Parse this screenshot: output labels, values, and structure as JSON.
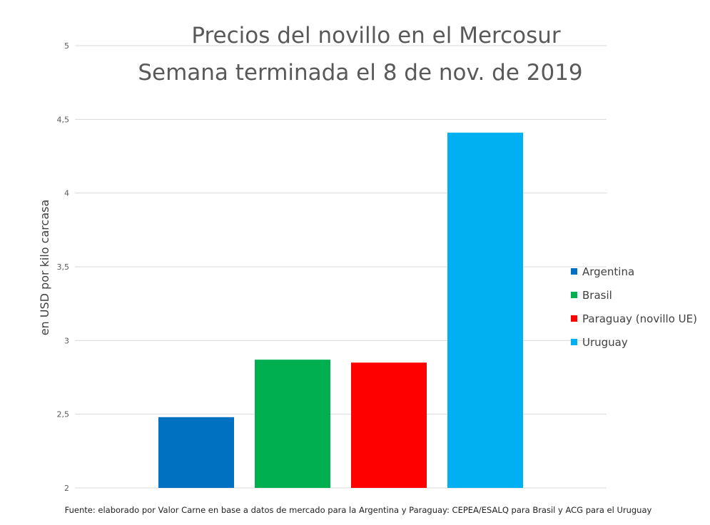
{
  "chart_data": {
    "type": "bar",
    "title": "Precios del novillo en el Mercosur",
    "subtitle": "Semana terminada el 8 de nov. de 2019",
    "ylabel": "en USD por kilo carcasa",
    "xlabel": "",
    "ylim": [
      2,
      5
    ],
    "yticks": [
      {
        "value": 2,
        "label": "2"
      },
      {
        "value": 2.5,
        "label": "2,5"
      },
      {
        "value": 3,
        "label": "3"
      },
      {
        "value": 3.5,
        "label": "3,5"
      },
      {
        "value": 4,
        "label": "4"
      },
      {
        "value": 4.5,
        "label": "4,5"
      },
      {
        "value": 5,
        "label": "5"
      }
    ],
    "grid": true,
    "legend_position": "right",
    "series": [
      {
        "name": "Argentina",
        "value": 2.48,
        "color": "#0070c0"
      },
      {
        "name": "Brasil",
        "value": 2.87,
        "color": "#00b050"
      },
      {
        "name": "Paraguay (novillo UE)",
        "value": 2.85,
        "color": "#ff0000"
      },
      {
        "name": "Uruguay",
        "value": 4.41,
        "color": "#00b0f0"
      }
    ],
    "source": "Fuente: elaborado por Valor Carne en base a datos de mercado para la Argentina y Paraguay: CEPEA/ESALQ para Brasil y ACG para el Uruguay"
  }
}
